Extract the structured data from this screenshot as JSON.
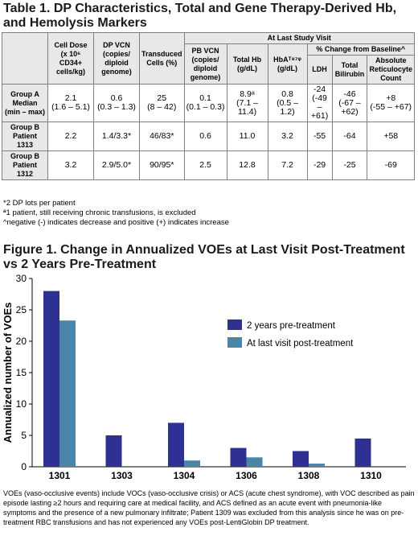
{
  "table1": {
    "title": "Table 1. DP Characteristics, Total and Gene Therapy-Derived Hb, and Hemolysis Markers",
    "group_header": "At Last Study Visit",
    "subgroup_header": "% Change from Baseline^",
    "columns": {
      "cell_dose": [
        "Cell Dose",
        "(x 10⁶",
        "CD34+",
        "cells/kg)"
      ],
      "dp_vcn": [
        "DP VCN",
        "(copies/",
        "diploid",
        "genome)"
      ],
      "transduced": [
        "Transduced",
        "Cells (%)"
      ],
      "pb_vcn": [
        "PB VCN",
        "(copies/",
        "diploid",
        "genome)"
      ],
      "total_hb": [
        "Total Hb",
        "(g/dL)"
      ],
      "hba": [
        "HbAᵀ⁸⁷ᵠ",
        "(g/dL)"
      ],
      "ldh": [
        "LDH"
      ],
      "bilirubin": [
        "Total",
        "Bilirubin"
      ],
      "reticulocyte": [
        "Absolute",
        "Reticulocyte",
        "Count"
      ]
    },
    "rows": [
      {
        "label": [
          "Group A",
          "Median",
          "(min – max)"
        ],
        "cells": [
          [
            "2.1",
            "(1.6 – 5.1)"
          ],
          [
            "0.6",
            "(0.3 – 1.3)"
          ],
          [
            "25",
            "(8 – 42)"
          ],
          [
            "0.1",
            "(0.1 – 0.3)"
          ],
          [
            "8.9ᵃ",
            "(7.1 – 11.4)"
          ],
          [
            "0.8",
            "(0.5 – 1.2)"
          ],
          [
            "-24",
            "(-49 – +61)"
          ],
          [
            "-46",
            "(-67 – +62)"
          ],
          [
            "+8",
            "(-55 – +67)"
          ]
        ]
      },
      {
        "label": [
          "Group B",
          "Patient",
          "1313"
        ],
        "cells": [
          [
            "2.2"
          ],
          [
            "1.4/3.3*"
          ],
          [
            "46/83*"
          ],
          [
            "0.6"
          ],
          [
            "11.0"
          ],
          [
            "3.2"
          ],
          [
            "-55"
          ],
          [
            "-64"
          ],
          [
            "+58"
          ]
        ]
      },
      {
        "label": [
          "Group B",
          "Patient",
          "1312"
        ],
        "cells": [
          [
            "3.2"
          ],
          [
            "2.9/5.0*"
          ],
          [
            "90/95*"
          ],
          [
            "2.5"
          ],
          [
            "12.8"
          ],
          [
            "7.2"
          ],
          [
            "-29"
          ],
          [
            "-25"
          ],
          [
            "-69"
          ]
        ]
      }
    ],
    "notes": [
      "*2 DP lots per patient",
      "ª1 patient, still receiving chronic transfusions, is excluded",
      "^negative (-) indicates decrease and positive (+) indicates increase"
    ]
  },
  "figure1": {
    "title": "Figure 1. Change in Annualized VOEs at Last Visit Post-Treatment vs 2 Years Pre-Treatment",
    "caption": "VOEs (vaso-occlusive events) include VOCs (vaso-occlusive crisis) or ACS (acute chest syndrome), with VOC described as pain episode lasting ≥2 hours and requiring care at medical facility, and ACS defined as an acute event with pneumonia-like symptoms and the presence of a new pulmonary infiltrate; Patient 1309 was excluded from this analysis since he was on pre-treatment RBC transfusions and has not experienced any VOEs post-LentiGlobin DP treatment."
  },
  "chart_data": {
    "type": "bar",
    "categories": [
      "1301",
      "1303",
      "1304",
      "1306",
      "1308",
      "1310"
    ],
    "series": [
      {
        "name": "2 years pre-treatment",
        "color": "#2e3192",
        "values": [
          28,
          5,
          7,
          3,
          2.5,
          4.5
        ]
      },
      {
        "name": "At last visit post-treatment",
        "color": "#4a86a8",
        "values": [
          23.3,
          0,
          1,
          1.5,
          0.5,
          0
        ]
      }
    ],
    "title": "",
    "xlabel": "",
    "ylabel": "Annualized number of VOEs",
    "ylim": [
      0,
      30
    ],
    "yticks": [
      0,
      5,
      10,
      15,
      20,
      25,
      30
    ],
    "grid": false,
    "legend_position": "right"
  }
}
